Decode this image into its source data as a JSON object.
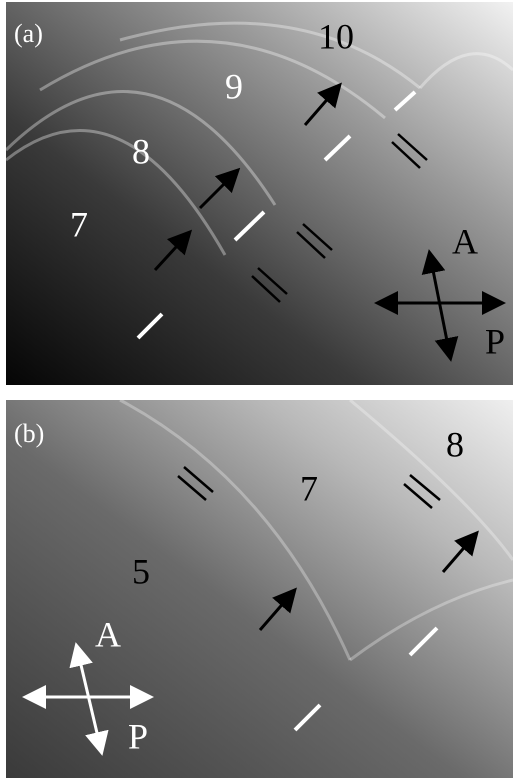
{
  "panel_a": {
    "label": "(a)",
    "orders": [
      "10",
      "9",
      "8",
      "7"
    ],
    "analyzer": "A",
    "polarizer": "P"
  },
  "panel_b": {
    "label": "(b)",
    "orders": [
      "8",
      "7",
      "5"
    ],
    "analyzer": "A",
    "polarizer": "P"
  }
}
